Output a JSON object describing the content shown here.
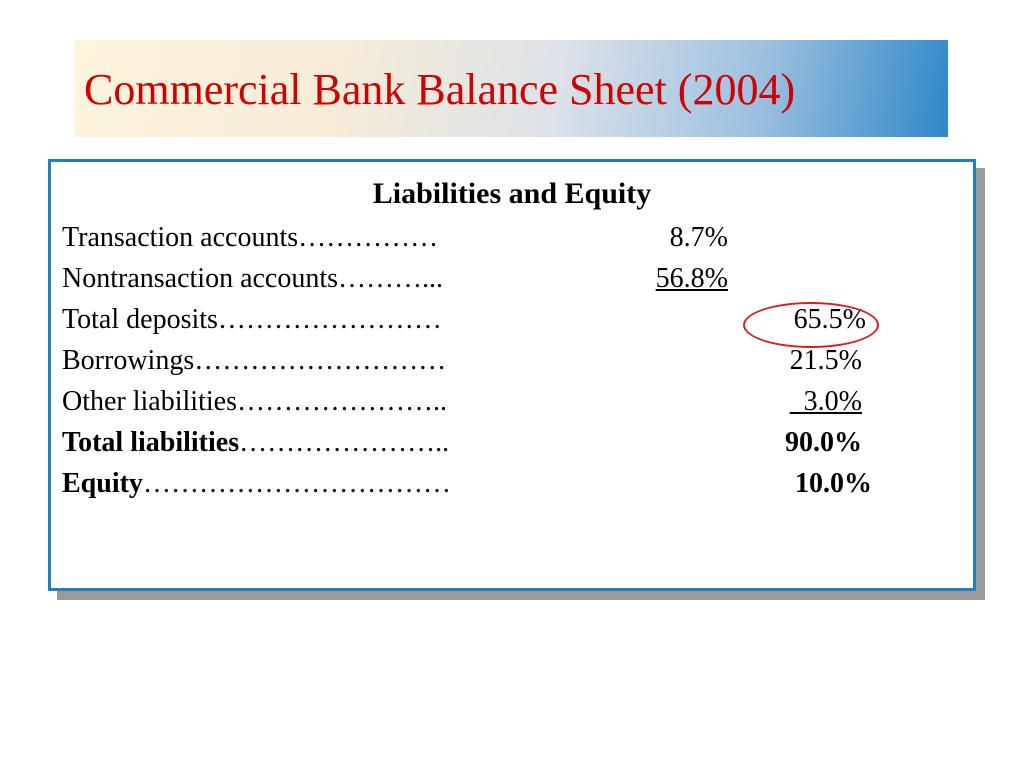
{
  "slide": {
    "title": "Commercial Bank Balance Sheet (2004)"
  },
  "panel": {
    "heading": "Liabilities and Equity",
    "rows": [
      {
        "label": "Transaction accounts",
        "leader": "……………",
        "value": "8.7%"
      },
      {
        "label": "Nontransaction accounts",
        "leader": "………...",
        "value": "56.8%"
      },
      {
        "label": "Total deposits",
        "leader": "……………………",
        "value": "65.5%"
      },
      {
        "label": "Borrowings",
        "leader": "………………………",
        "value": "21.5%"
      },
      {
        "label": "Other liabilities",
        "leader": "…………………..",
        "value": "3.0%"
      },
      {
        "label": "Total liabilities",
        "leader": "…………………..",
        "value": "90.0%"
      },
      {
        "label": "Equity",
        "leader": "……………………………",
        "value": "10.0%"
      }
    ]
  },
  "colors": {
    "title": "#cc0000",
    "panel_border": "#1f7fc0",
    "highlight_circle": "#d42020"
  }
}
